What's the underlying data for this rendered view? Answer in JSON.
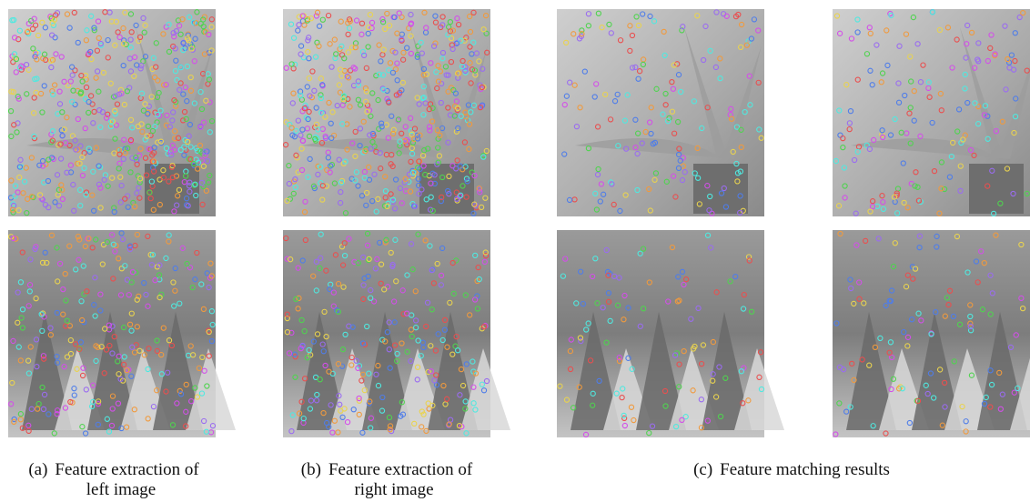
{
  "figure": {
    "captions": [
      {
        "label": "(a)",
        "lines": [
          "Feature extraction of",
          "left image"
        ]
      },
      {
        "label": "(b)",
        "lines": [
          "Feature extraction of",
          "right image"
        ]
      },
      {
        "label": "(c)",
        "lines": [
          "Feature matching results"
        ]
      }
    ]
  }
}
